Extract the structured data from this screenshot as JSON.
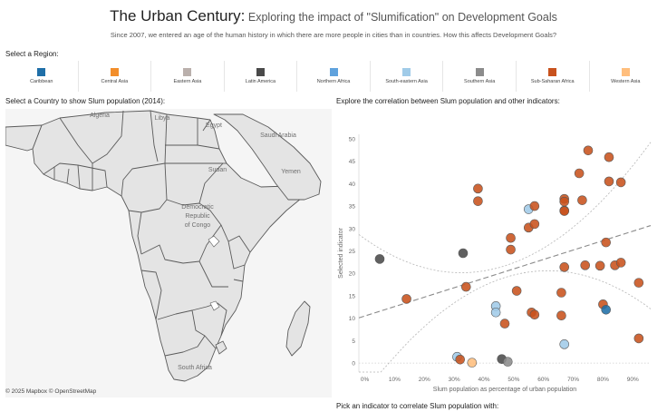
{
  "header": {
    "title_main": "The Urban Century:",
    "title_sub": " Exploring the impact of \"Slumification\" on Development Goals",
    "subtitle": "Since 2007, we entered an age of the human history in which there are more people in cities than in countries. How this affects Development Goals?"
  },
  "region_filter": {
    "label": "Select a Region:",
    "items": [
      {
        "label": "Caribbean",
        "color": "#1f6fa8",
        "icon": "square-swatch"
      },
      {
        "label": "Central Asia",
        "color": "#f28e2b",
        "icon": "square-swatch"
      },
      {
        "label": "Eastern Asia",
        "color": "#bab0ac",
        "icon": "square-swatch"
      },
      {
        "label": "Latin America",
        "color": "#4a4a4a",
        "icon": "square-swatch"
      },
      {
        "label": "Northern Africa",
        "color": "#5fa2dd",
        "icon": "square-swatch"
      },
      {
        "label": "South-eastern Asia",
        "color": "#a0cbe8",
        "icon": "square-swatch"
      },
      {
        "label": "Southern Asia",
        "color": "#8c8c8c",
        "icon": "square-swatch"
      },
      {
        "label": "Sub-Saharan Africa",
        "color": "#c8521d",
        "icon": "square-swatch"
      },
      {
        "label": "Western Asia",
        "color": "#ffbe7d",
        "icon": "square-swatch"
      }
    ]
  },
  "map": {
    "label": "Select a Country to show Slum population (2014):",
    "place_labels": [
      "Algeria",
      "Libya",
      "Egypt",
      "Saudi Arabia",
      "Sudan",
      "Yemen",
      "Democratic",
      "Republic",
      "of Congo",
      "South Africa"
    ],
    "copyright": "© 2025 Mapbox  © OpenStreetMap",
    "land_color": "#e4e4e4",
    "border_color": "#5a5a5a",
    "water_color": "#f5f5f5"
  },
  "chart_panel": {
    "label": "Explore the correlation between Slum population and other indicators:"
  },
  "chart_data": {
    "type": "scatter",
    "xlabel": "Slum population as percentage of urban population",
    "ylabel": "Selected indicator",
    "xlim": [
      -0.02,
      0.96
    ],
    "ylim": [
      -2,
      51
    ],
    "x_ticks": [
      0,
      0.1,
      0.2,
      0.3,
      0.4,
      0.5,
      0.6,
      0.7,
      0.8,
      0.9
    ],
    "x_tick_labels": [
      "0%",
      "10%",
      "20%",
      "30%",
      "40%",
      "50%",
      "60%",
      "70%",
      "80%",
      "90%"
    ],
    "y_ticks": [
      0,
      5,
      10,
      15,
      20,
      25,
      30,
      35,
      40,
      45,
      50
    ],
    "grid": false,
    "trend": {
      "intercept": 10.5,
      "slope": 21.0
    },
    "points": [
      {
        "x": 0.05,
        "y": 23.2,
        "region": "Latin America"
      },
      {
        "x": 0.14,
        "y": 14.3,
        "region": "Sub-Saharan Africa"
      },
      {
        "x": 0.33,
        "y": 24.5,
        "region": "Latin America"
      },
      {
        "x": 0.34,
        "y": 17.0,
        "region": "Sub-Saharan Africa"
      },
      {
        "x": 0.38,
        "y": 38.9,
        "region": "Sub-Saharan Africa"
      },
      {
        "x": 0.38,
        "y": 36.1,
        "region": "Sub-Saharan Africa"
      },
      {
        "x": 0.31,
        "y": 1.4,
        "region": "South-eastern Asia"
      },
      {
        "x": 0.32,
        "y": 0.8,
        "region": "Sub-Saharan Africa"
      },
      {
        "x": 0.36,
        "y": 0.1,
        "region": "Western Asia"
      },
      {
        "x": 0.44,
        "y": 12.7,
        "region": "South-eastern Asia"
      },
      {
        "x": 0.44,
        "y": 11.3,
        "region": "South-eastern Asia"
      },
      {
        "x": 0.46,
        "y": 0.9,
        "region": "Latin America"
      },
      {
        "x": 0.47,
        "y": 8.8,
        "region": "Sub-Saharan Africa"
      },
      {
        "x": 0.48,
        "y": 0.3,
        "region": "Southern Asia"
      },
      {
        "x": 0.49,
        "y": 25.3,
        "region": "Sub-Saharan Africa"
      },
      {
        "x": 0.49,
        "y": 27.9,
        "region": "Sub-Saharan Africa"
      },
      {
        "x": 0.51,
        "y": 16.1,
        "region": "Sub-Saharan Africa"
      },
      {
        "x": 0.55,
        "y": 30.2,
        "region": "Sub-Saharan Africa"
      },
      {
        "x": 0.55,
        "y": 34.3,
        "region": "South-eastern Asia"
      },
      {
        "x": 0.56,
        "y": 11.3,
        "region": "Sub-Saharan Africa"
      },
      {
        "x": 0.57,
        "y": 35.0,
        "region": "Sub-Saharan Africa"
      },
      {
        "x": 0.57,
        "y": 31.0,
        "region": "Sub-Saharan Africa"
      },
      {
        "x": 0.57,
        "y": 10.8,
        "region": "Sub-Saharan Africa"
      },
      {
        "x": 0.66,
        "y": 10.6,
        "region": "Sub-Saharan Africa"
      },
      {
        "x": 0.66,
        "y": 15.7,
        "region": "Sub-Saharan Africa"
      },
      {
        "x": 0.67,
        "y": 36.6,
        "region": "Sub-Saharan Africa"
      },
      {
        "x": 0.67,
        "y": 34.0,
        "region": "Sub-Saharan Africa"
      },
      {
        "x": 0.67,
        "y": 33.9,
        "region": "Sub-Saharan Africa"
      },
      {
        "x": 0.67,
        "y": 36.0,
        "region": "Sub-Saharan Africa"
      },
      {
        "x": 0.67,
        "y": 21.4,
        "region": "Sub-Saharan Africa"
      },
      {
        "x": 0.67,
        "y": 4.2,
        "region": "South-eastern Asia"
      },
      {
        "x": 0.72,
        "y": 42.3,
        "region": "Sub-Saharan Africa"
      },
      {
        "x": 0.73,
        "y": 36.3,
        "region": "Sub-Saharan Africa"
      },
      {
        "x": 0.74,
        "y": 21.8,
        "region": "Sub-Saharan Africa"
      },
      {
        "x": 0.75,
        "y": 47.4,
        "region": "Sub-Saharan Africa"
      },
      {
        "x": 0.79,
        "y": 21.7,
        "region": "Sub-Saharan Africa"
      },
      {
        "x": 0.8,
        "y": 13.1,
        "region": "Sub-Saharan Africa"
      },
      {
        "x": 0.81,
        "y": 11.9,
        "region": "Caribbean"
      },
      {
        "x": 0.81,
        "y": 26.9,
        "region": "Sub-Saharan Africa"
      },
      {
        "x": 0.82,
        "y": 45.9,
        "region": "Sub-Saharan Africa"
      },
      {
        "x": 0.82,
        "y": 40.5,
        "region": "Sub-Saharan Africa"
      },
      {
        "x": 0.84,
        "y": 21.8,
        "region": "Sub-Saharan Africa"
      },
      {
        "x": 0.86,
        "y": 40.3,
        "region": "Sub-Saharan Africa"
      },
      {
        "x": 0.86,
        "y": 22.4,
        "region": "Sub-Saharan Africa"
      },
      {
        "x": 0.92,
        "y": 17.9,
        "region": "Sub-Saharan Africa"
      },
      {
        "x": 0.92,
        "y": 5.5,
        "region": "Sub-Saharan Africa"
      }
    ]
  },
  "footer": {
    "pick_label": "Pick an indicator to correlate Slum population with:"
  }
}
